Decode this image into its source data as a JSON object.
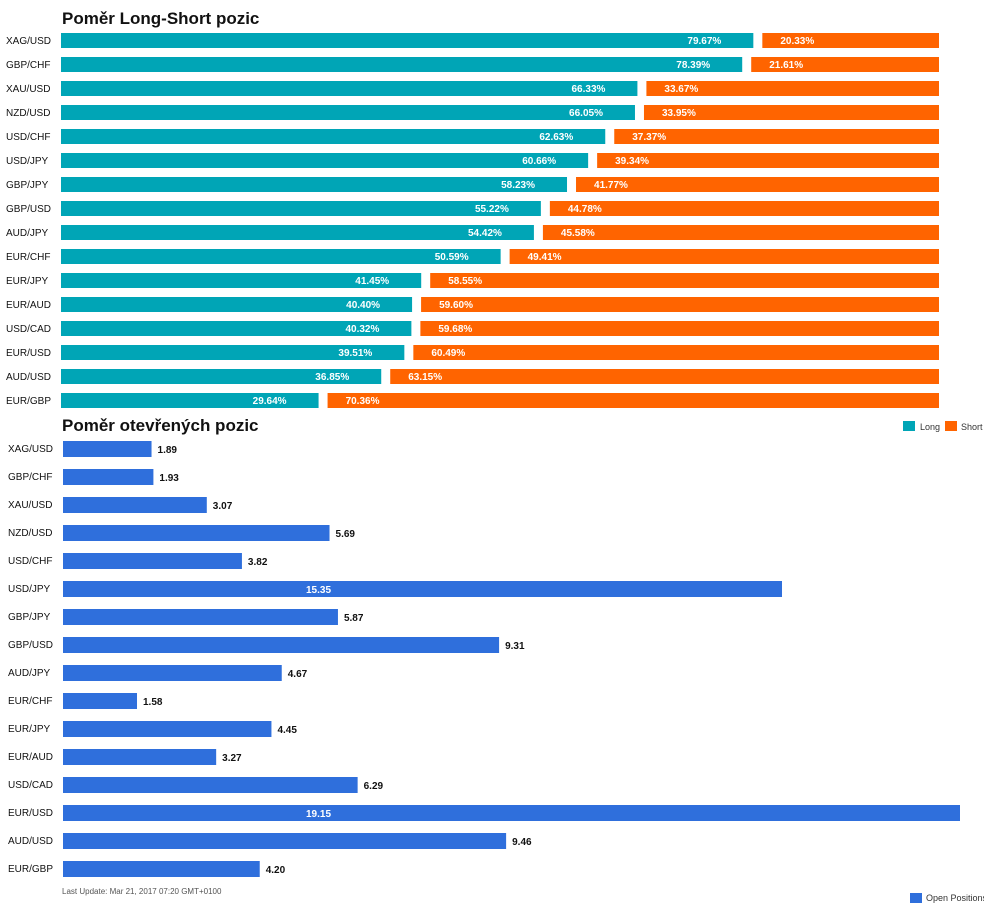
{
  "colors": {
    "long": "#00a5b6",
    "short": "#ff6400",
    "open_positions": "#2f6fdc"
  },
  "footer": {
    "last_update": "Last Update: Mar 21, 2017 07:20 GMT+0100"
  },
  "chart_data": [
    {
      "type": "bar",
      "orientation": "horizontal",
      "stacked": true,
      "title": "Poměr Long-Short pozic",
      "categories": [
        "XAG/USD",
        "GBP/CHF",
        "XAU/USD",
        "NZD/USD",
        "USD/CHF",
        "USD/JPY",
        "GBP/JPY",
        "GBP/USD",
        "AUD/JPY",
        "EUR/CHF",
        "EUR/JPY",
        "EUR/AUD",
        "USD/CAD",
        "EUR/USD",
        "AUD/USD",
        "EUR/GBP"
      ],
      "series": [
        {
          "name": "Long",
          "values": [
            79.67,
            78.39,
            66.33,
            66.05,
            62.63,
            60.66,
            58.23,
            55.22,
            54.42,
            50.59,
            41.45,
            40.4,
            40.32,
            39.51,
            36.85,
            29.64
          ],
          "labels": [
            "79.67%",
            "78.39%",
            "66.33%",
            "66.05%",
            "62.63%",
            "60.66%",
            "58.23%",
            "55.22%",
            "54.42%",
            "50.59%",
            "41.45%",
            "40.40%",
            "40.32%",
            "39.51%",
            "36.85%",
            "29.64%"
          ]
        },
        {
          "name": "Short",
          "values": [
            20.33,
            21.61,
            33.67,
            33.95,
            37.37,
            39.34,
            41.77,
            44.78,
            45.58,
            49.41,
            58.55,
            59.6,
            59.68,
            60.49,
            63.15,
            70.36
          ],
          "labels": [
            "20.33%",
            "21.61%",
            "33.67%",
            "33.95%",
            "37.37%",
            "39.34%",
            "41.77%",
            "44.78%",
            "45.58%",
            "49.41%",
            "58.55%",
            "59.60%",
            "59.68%",
            "60.49%",
            "63.15%",
            "70.36%"
          ]
        }
      ],
      "xlim": [
        0,
        100
      ],
      "legend": "top-right"
    },
    {
      "type": "bar",
      "orientation": "horizontal",
      "title": "Poměr otevřených pozic",
      "categories": [
        "XAG/USD",
        "GBP/CHF",
        "XAU/USD",
        "NZD/USD",
        "USD/CHF",
        "USD/JPY",
        "GBP/JPY",
        "GBP/USD",
        "AUD/JPY",
        "EUR/CHF",
        "EUR/JPY",
        "EUR/AUD",
        "USD/CAD",
        "EUR/USD",
        "AUD/USD",
        "EUR/GBP"
      ],
      "series": [
        {
          "name": "Open Positions",
          "values": [
            1.89,
            1.93,
            3.07,
            5.69,
            3.82,
            15.35,
            5.87,
            9.31,
            4.67,
            1.58,
            4.45,
            3.27,
            6.29,
            19.15,
            9.46,
            4.2
          ],
          "labels": [
            "1.89",
            "1.93",
            "3.07",
            "5.69",
            "3.82",
            "15.35",
            "5.87",
            "9.31",
            "4.67",
            "1.58",
            "4.45",
            "3.27",
            "6.29",
            "19.15",
            "9.46",
            "4.20"
          ]
        }
      ],
      "legend": "bottom-right"
    }
  ]
}
